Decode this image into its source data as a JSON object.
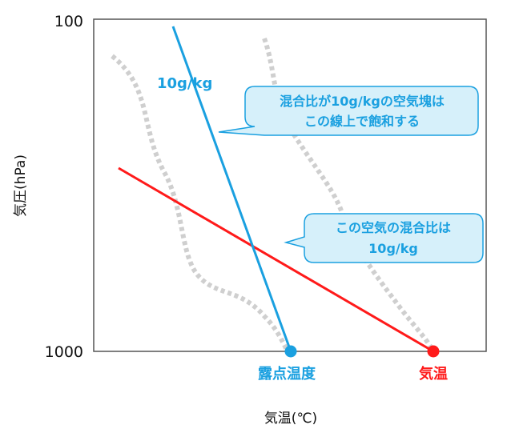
{
  "axes": {
    "y_top_label": "100",
    "y_bottom_label": "1000",
    "y_title": "気圧(hPa)",
    "x_title": "気温(℃)"
  },
  "lines": {
    "mixing_ratio_label": "10g/kg"
  },
  "points": {
    "dew_point_label": "露点温度",
    "temperature_label": "気温"
  },
  "callouts": [
    {
      "lines": [
        "混合比が10g/kgの空気塊は",
        "この線上で飽和する"
      ]
    },
    {
      "lines": [
        "この空気の混合比は",
        "10g/kg"
      ]
    }
  ],
  "colors": {
    "blue": "#1aa0e0",
    "red": "#ff1a1a",
    "callout_fill": "#d6f0fa",
    "dotted_gray": "#cfcfcf",
    "frame": "#555555"
  }
}
